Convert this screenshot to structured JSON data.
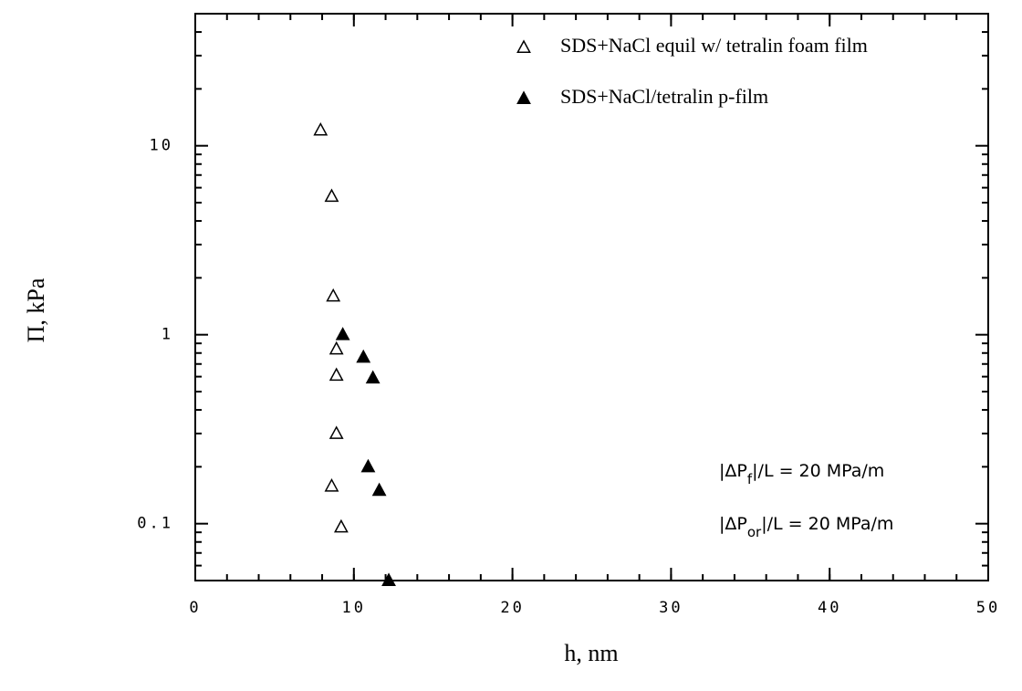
{
  "chart_data": {
    "type": "scatter",
    "x_label": "h, nm",
    "y_label": "Π, kPa",
    "xlim": [
      0,
      50
    ],
    "xticks": [
      0,
      10,
      20,
      30,
      40,
      50
    ],
    "ylim": [
      0.05,
      50
    ],
    "yticks": [
      0.1,
      1,
      10
    ],
    "y_log": true,
    "grid": false,
    "legend_position": "upper right",
    "series": [
      {
        "name": "SDS+NaCl equil w/ tetralin foam film",
        "marker": "open-triangle",
        "color": "#000000",
        "x": [
          7.9,
          8.6,
          8.7,
          8.9,
          8.9,
          8.9,
          8.6,
          9.2
        ],
        "values": [
          12.1,
          5.4,
          1.6,
          0.84,
          0.61,
          0.3,
          0.158,
          0.096
        ]
      },
      {
        "name": "SDS+NaCl/tetralin p-film",
        "marker": "filled-triangle",
        "color": "#000000",
        "x": [
          9.3,
          10.6,
          11.2,
          10.9,
          11.6,
          12.2
        ],
        "values": [
          1.0,
          0.76,
          0.59,
          0.2,
          0.15,
          0.05
        ]
      }
    ],
    "annotations": [
      {
        "pre": "|ΔP",
        "sub": "f",
        "post": "|/L = 20 MPa/m"
      },
      {
        "pre": "|ΔP",
        "sub": "or",
        "post": "|/L = 20 MPa/m"
      }
    ]
  }
}
